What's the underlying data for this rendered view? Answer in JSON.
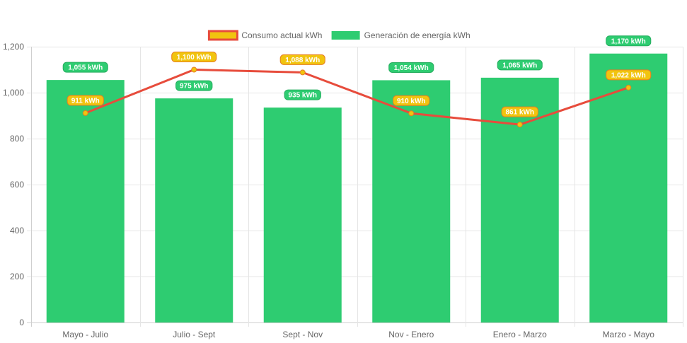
{
  "chart_data": {
    "type": "bar",
    "categories": [
      "Mayo - Julio",
      "Julio - Sept",
      "Sept - Nov",
      "Nov - Enero",
      "Enero - Marzo",
      "Marzo - Mayo"
    ],
    "series": [
      {
        "name": "Generación de energía kWh",
        "type": "bar",
        "values": [
          1055,
          975,
          935,
          1054,
          1065,
          1170
        ],
        "labels": [
          "1,055 kWh",
          "975 kWh",
          "935 kWh",
          "1,054 kWh",
          "1,065 kWh",
          "1,170 kWh"
        ],
        "color": "#2ecc71",
        "label_border": "#27ae60"
      },
      {
        "name": "Consumo actual kWh",
        "type": "line",
        "values": [
          911,
          1100,
          1088,
          910,
          861,
          1022
        ],
        "labels": [
          "911 kWh",
          "1,100 kWh",
          "1,088 kWh",
          "910 kWh",
          "861 kWh",
          "1,022 kWh"
        ],
        "color": "#e74c3c",
        "fill_color": "#f1c40f",
        "label_border": "#e67e22"
      }
    ],
    "ylim": [
      0,
      1200
    ],
    "yticks": [
      0,
      200,
      400,
      600,
      800,
      1000,
      1200
    ],
    "ytick_labels": [
      "0",
      "200",
      "400",
      "600",
      "800",
      "1,000",
      "1,200"
    ],
    "grid": true,
    "legend_position": "top",
    "title": "",
    "xlabel": "",
    "ylabel": ""
  },
  "colors": {
    "grid": "#e5e5e5",
    "axis": "#cfcfcf",
    "tick_text": "#666666"
  }
}
